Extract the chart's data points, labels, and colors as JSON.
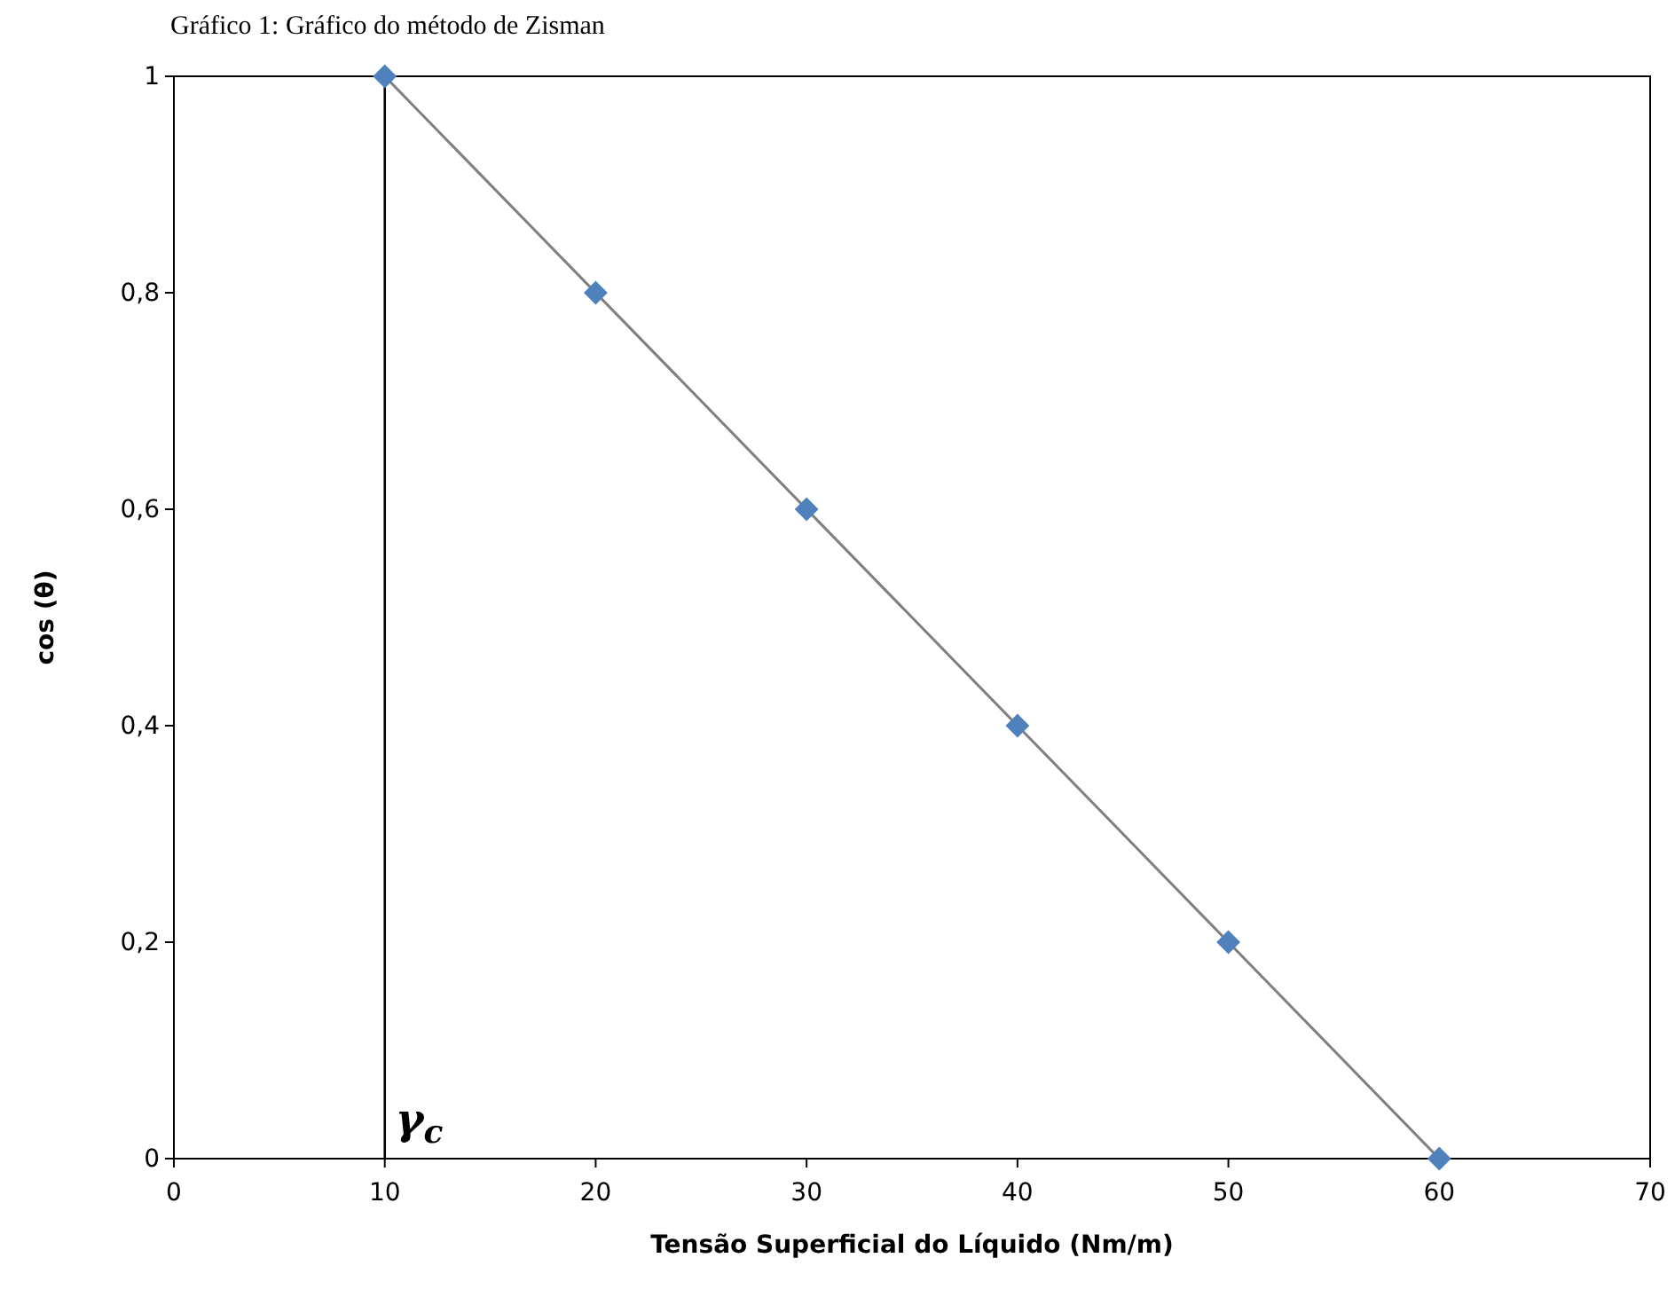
{
  "chart_data": {
    "type": "scatter",
    "title": "Gráfico 1: Gráfico do método de Zisman",
    "xlabel": "Tensão Superficial do Líquido (Nm/m)",
    "ylabel": "cos (θ)",
    "x": [
      10,
      20,
      30,
      40,
      50,
      60
    ],
    "series": [
      {
        "type": "line",
        "color": "#7f7f7f",
        "x": [
          10,
          60
        ],
        "values": [
          1,
          0
        ],
        "line_style": "solid",
        "marker": "none"
      },
      {
        "color": "#4f81bd",
        "values": [
          1,
          0.8,
          0.6,
          0.4,
          0.2,
          0
        ],
        "marker": "diamond"
      }
    ],
    "xlim": [
      0,
      70
    ],
    "xticks": [
      0,
      10,
      20,
      30,
      40,
      50,
      60,
      70
    ],
    "ylim": [
      0,
      1
    ],
    "yticks": [
      0,
      {
        "value": 0.2,
        "label": "0,2"
      },
      {
        "value": 0.4,
        "label": "0,4"
      },
      {
        "value": 0.6,
        "label": "0,6"
      },
      {
        "value": 0.8,
        "label": "0,8"
      },
      1
    ],
    "ref_lines": [
      {
        "axis": "x",
        "value": 10,
        "label": "γ$_{c}$",
        "color": "#000000"
      }
    ],
    "grid": false
  }
}
